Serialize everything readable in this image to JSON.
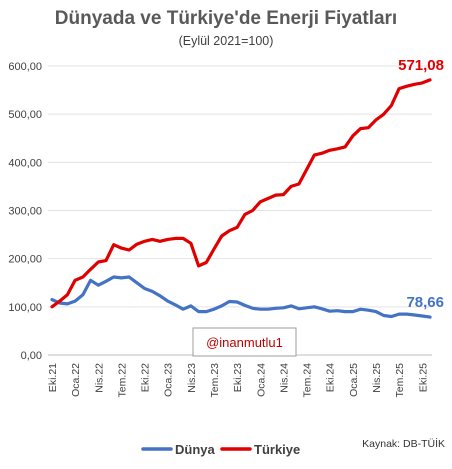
{
  "chart_data": {
    "type": "line",
    "title": "Dünyada ve Türkiye'de Enerji Fiyatları",
    "subtitle": "(Eylül 2021=100)",
    "ylim": [
      0,
      600
    ],
    "yticks": [
      "0,00",
      "100,00",
      "200,00",
      "300,00",
      "400,00",
      "500,00",
      "600,00"
    ],
    "ytick_values": [
      0,
      100,
      200,
      300,
      400,
      500,
      600
    ],
    "grid": true,
    "xtick_labels": [
      "Eki.21",
      "Oca.22",
      "Nis.22",
      "Tem.22",
      "Eki.22",
      "Oca.23",
      "Nis.23",
      "Tem.23",
      "Eki.23",
      "Oca.24",
      "Nis.24",
      "Tem.24",
      "Eki.24",
      "Oca.25",
      "Nis.25",
      "Tem.25",
      "Eki.25"
    ],
    "series": [
      {
        "name": "Dünya",
        "color": "#4472c4",
        "end_label": "78,66",
        "values": [
          115,
          108,
          106,
          112,
          125,
          155,
          145,
          153,
          162,
          160,
          162,
          150,
          138,
          132,
          123,
          112,
          104,
          95,
          102,
          90,
          90,
          95,
          102,
          111,
          110,
          103,
          97,
          95,
          95,
          97,
          98,
          102,
          96,
          98,
          100,
          96,
          91,
          92,
          90,
          90,
          95,
          93,
          90,
          82,
          80,
          85,
          85,
          83,
          81,
          78.66
        ]
      },
      {
        "name": "Türkiye",
        "color": "#e00000",
        "end_label": "571,08",
        "values": [
          100,
          112,
          125,
          155,
          162,
          178,
          193,
          196,
          229,
          222,
          218,
          230,
          236,
          240,
          236,
          240,
          242,
          242,
          232,
          185,
          192,
          220,
          247,
          258,
          265,
          292,
          300,
          318,
          325,
          332,
          333,
          350,
          355,
          385,
          415,
          419,
          425,
          428,
          432,
          455,
          470,
          472,
          488,
          500,
          518,
          553,
          558,
          562,
          565,
          571.08
        ]
      }
    ],
    "legend": "bottom-center",
    "annotation": "@inanmutlu1",
    "source": "Kaynak: DB-TÜİK"
  }
}
